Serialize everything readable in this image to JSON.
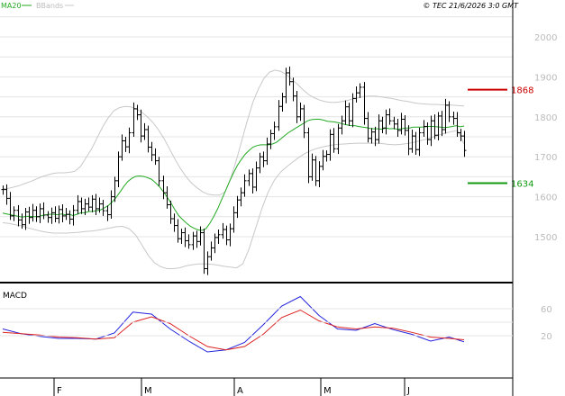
{
  "header": {
    "legend_ma": "MA20",
    "legend_bb": "BBands",
    "copyright": "© TEC 21/6/2026 3:0 GMT"
  },
  "colors": {
    "background": "#ffffff",
    "grid": "#e4e4e4",
    "frame": "#000000",
    "price_bar": "#000000",
    "ma": "#22aa22",
    "bbands": "#c8c8c8",
    "resistance": "#cc0000",
    "support": "#119911",
    "macd": "#2222dd",
    "signal": "#dd2222",
    "axis_text": "#bbbbbb"
  },
  "chart_data": [
    {
      "type": "ohlc",
      "title": "",
      "x_labels": [
        "F",
        "M",
        "A",
        "M",
        "J"
      ],
      "y_ticks": [
        1500,
        1600,
        1700,
        1800,
        1900,
        2000
      ],
      "ylim": [
        1430,
        2060
      ],
      "levels": [
        {
          "label": "1868",
          "value": 1868,
          "color": "#cc0000"
        },
        {
          "label": "1634",
          "value": 1634,
          "color": "#119911"
        }
      ],
      "closes": [
        1618,
        1596,
        1552,
        1566,
        1542,
        1530,
        1562,
        1548,
        1566,
        1550,
        1570,
        1554,
        1548,
        1560,
        1546,
        1568,
        1552,
        1556,
        1544,
        1566,
        1588,
        1570,
        1582,
        1574,
        1594,
        1570,
        1582,
        1565,
        1555,
        1600,
        1640,
        1700,
        1740,
        1725,
        1760,
        1820,
        1805,
        1752,
        1768,
        1724,
        1705,
        1690,
        1640,
        1610,
        1580,
        1545,
        1528,
        1495,
        1510,
        1490,
        1480,
        1502,
        1488,
        1510,
        1420,
        1450,
        1472,
        1498,
        1505,
        1518,
        1492,
        1520,
        1560,
        1592,
        1610,
        1640,
        1658,
        1624,
        1672,
        1700,
        1690,
        1732,
        1758,
        1775,
        1826,
        1850,
        1910,
        1888,
        1852,
        1800,
        1820,
        1760,
        1650,
        1692,
        1640,
        1676,
        1701,
        1706,
        1756,
        1720,
        1772,
        1790,
        1825,
        1790,
        1846,
        1860,
        1874,
        1796,
        1746,
        1762,
        1743,
        1790,
        1772,
        1805,
        1790,
        1782,
        1766,
        1794,
        1766,
        1720,
        1752,
        1718,
        1760,
        1776,
        1743,
        1790,
        1754,
        1802,
        1768,
        1829,
        1800,
        1796,
        1760,
        1752,
        1716
      ],
      "ma20": [
        1559,
        1557,
        1555,
        1553,
        1551,
        1549,
        1551,
        1551,
        1550,
        1550,
        1553,
        1555,
        1556,
        1556,
        1555,
        1557,
        1555,
        1556,
        1553,
        1556,
        1560,
        1560,
        1563,
        1563,
        1565,
        1567,
        1572,
        1578,
        1587,
        1598,
        1612,
        1626,
        1638,
        1646,
        1651,
        1652,
        1651,
        1648,
        1644,
        1636,
        1626,
        1614,
        1600,
        1585,
        1568,
        1553,
        1543,
        1534,
        1526,
        1521,
        1517,
        1516,
        1520,
        1534,
        1551,
        1570,
        1593,
        1615,
        1638,
        1659,
        1678,
        1693,
        1706,
        1716,
        1724,
        1728,
        1730,
        1730,
        1730,
        1732,
        1736,
        1744,
        1752,
        1760,
        1766,
        1772,
        1778,
        1784,
        1790,
        1793,
        1794,
        1794,
        1792,
        1789,
        1788,
        1787,
        1785,
        1782,
        1780,
        1778,
        1778,
        1776,
        1774,
        1773,
        1771,
        1770,
        1770,
        1769,
        1772,
        1770,
        1771,
        1769,
        1770,
        1772,
        1772,
        1774,
        1774,
        1774,
        1775,
        1776,
        1776,
        1775,
        1774,
        1773,
        1774,
        1776,
        1778,
        1775,
        1777
      ],
      "bb_upper": [
        1620,
        1621,
        1624,
        1628,
        1633,
        1638,
        1644,
        1650,
        1654,
        1658,
        1660,
        1660,
        1661,
        1664,
        1676,
        1698,
        1720,
        1748,
        1775,
        1798,
        1815,
        1823,
        1826,
        1825,
        1820,
        1812,
        1800,
        1786,
        1768,
        1746,
        1720,
        1694,
        1670,
        1650,
        1634,
        1622,
        1612,
        1606,
        1604,
        1604,
        1612,
        1645,
        1690,
        1740,
        1790,
        1836,
        1870,
        1896,
        1912,
        1917,
        1914,
        1906,
        1894,
        1882,
        1868,
        1856,
        1848,
        1842,
        1838,
        1836,
        1836,
        1838,
        1841,
        1845,
        1848,
        1851,
        1852,
        1852,
        1850,
        1848,
        1846,
        1843,
        1840,
        1838,
        1835,
        1833,
        1832,
        1831,
        1831,
        1830,
        1830,
        1829,
        1828,
        1827
      ],
      "bb_lower": [
        1535,
        1533,
        1530,
        1527,
        1522,
        1518,
        1514,
        1511,
        1509,
        1509,
        1509,
        1510,
        1511,
        1513,
        1514,
        1516,
        1519,
        1522,
        1525,
        1526,
        1520,
        1505,
        1480,
        1454,
        1435,
        1425,
        1420,
        1420,
        1422,
        1427,
        1430,
        1432,
        1432,
        1431,
        1429,
        1426,
        1424,
        1422,
        1432,
        1470,
        1520,
        1570,
        1612,
        1642,
        1662,
        1676,
        1688,
        1700,
        1710,
        1717,
        1722,
        1726,
        1729,
        1731,
        1732,
        1733,
        1734,
        1734,
        1734,
        1734,
        1733,
        1731,
        1730,
        1731,
        1733,
        1736,
        1740,
        1744,
        1749,
        1754,
        1759,
        1763,
        1766,
        1732
      ]
    },
    {
      "type": "line",
      "title": "MACD",
      "y_ticks": [
        20,
        60
      ],
      "ylim": [
        -10,
        80
      ],
      "x": [
        0,
        5,
        10,
        15,
        20,
        25,
        30,
        35,
        40,
        45,
        50,
        55,
        60,
        65,
        70,
        75,
        80,
        85,
        90,
        95,
        100,
        105,
        110,
        115,
        120,
        124
      ],
      "series": [
        {
          "name": "macd",
          "color": "#2222dd",
          "values": [
            30,
            23,
            19,
            16,
            16,
            15,
            24,
            55,
            52,
            30,
            12,
            -4,
            -1,
            10,
            36,
            64,
            78,
            50,
            30,
            28,
            38,
            29,
            22,
            12,
            18,
            11
          ]
        },
        {
          "name": "signal",
          "color": "#dd2222",
          "values": [
            25,
            23,
            21,
            18,
            17,
            15,
            17,
            40,
            48,
            38,
            20,
            4,
            -1,
            4,
            22,
            47,
            58,
            42,
            33,
            30,
            33,
            31,
            25,
            18,
            16,
            14
          ]
        }
      ]
    }
  ]
}
